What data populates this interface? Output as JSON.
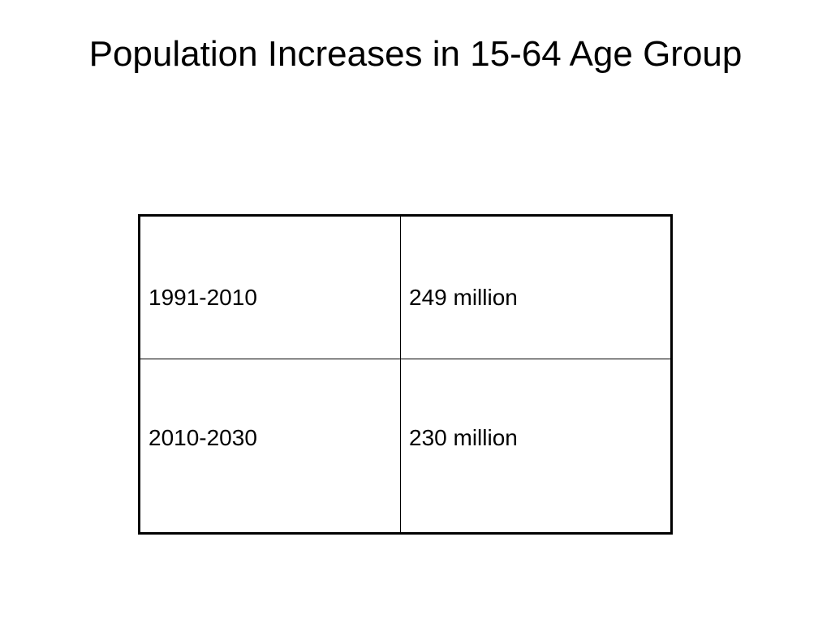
{
  "slide": {
    "title": "Population Increases in 15-64 Age Group"
  },
  "table": {
    "rows": [
      {
        "period": "1991-2010",
        "increase": "249 million"
      },
      {
        "period": "2010-2030",
        "increase": "230 million"
      }
    ]
  },
  "colors": {
    "background": "#ffffff",
    "text": "#000000",
    "border": "#000000"
  }
}
